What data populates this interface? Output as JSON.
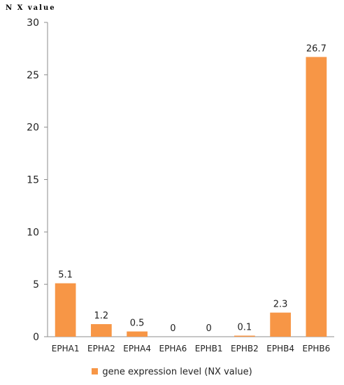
{
  "chart_data": {
    "type": "bar",
    "ylabel": "N X value",
    "xlabel": "",
    "categories": [
      "EPHA1",
      "EPHA2",
      "EPHA4",
      "EPHA6",
      "EPHB1",
      "EPHB2",
      "EPHB4",
      "EPHB6"
    ],
    "series": [
      {
        "name": "gene expression level (NX value)",
        "values": [
          5.1,
          1.2,
          0.5,
          0,
          0,
          0.1,
          2.3,
          26.7
        ],
        "data_labels": [
          "5.1",
          "1.2",
          "0.5",
          "0",
          "0",
          "0.1",
          "2.3",
          "26.7"
        ]
      }
    ],
    "ylim": [
      0,
      30
    ],
    "yticks": [
      0,
      5,
      10,
      15,
      20,
      25,
      30
    ],
    "grid": false,
    "legend": "bottom",
    "bar_color": "#f79646"
  }
}
